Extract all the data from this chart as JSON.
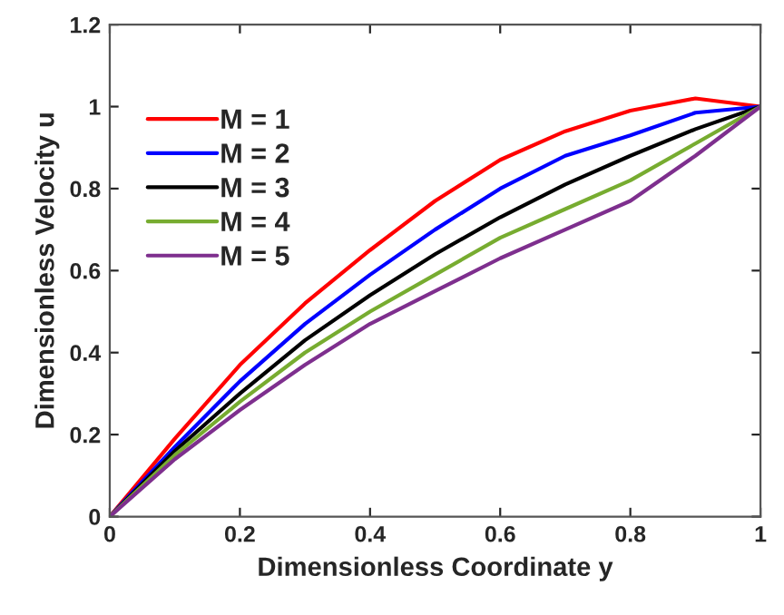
{
  "chart_data": {
    "type": "line",
    "xlabel": "Dimensionless Coordinate y",
    "ylabel": "Dimensionless Velocity u",
    "x": [
      0,
      0.1,
      0.2,
      0.3,
      0.4,
      0.5,
      0.6,
      0.7,
      0.8,
      0.9,
      1
    ],
    "series": [
      {
        "name": "M = 1",
        "color": "#ff0000",
        "values": [
          0,
          0.19,
          0.37,
          0.52,
          0.65,
          0.77,
          0.87,
          0.94,
          0.99,
          1.02,
          1
        ]
      },
      {
        "name": "M = 2",
        "color": "#0000ff",
        "values": [
          0,
          0.17,
          0.33,
          0.47,
          0.59,
          0.7,
          0.8,
          0.88,
          0.93,
          0.985,
          1
        ]
      },
      {
        "name": "M = 3",
        "color": "#000000",
        "values": [
          0,
          0.16,
          0.3,
          0.43,
          0.54,
          0.64,
          0.73,
          0.81,
          0.88,
          0.945,
          1
        ]
      },
      {
        "name": "M = 4",
        "color": "#77ac30",
        "values": [
          0,
          0.15,
          0.28,
          0.4,
          0.5,
          0.59,
          0.68,
          0.75,
          0.82,
          0.91,
          1
        ]
      },
      {
        "name": "M = 5",
        "color": "#7e2f8e",
        "values": [
          0,
          0.14,
          0.26,
          0.37,
          0.47,
          0.55,
          0.63,
          0.7,
          0.77,
          0.88,
          1
        ]
      }
    ],
    "xlim": [
      0,
      1
    ],
    "ylim": [
      0,
      1.2
    ],
    "xticks": [
      0,
      0.2,
      0.4,
      0.6,
      0.8,
      1
    ],
    "yticks": [
      0,
      0.2,
      0.4,
      0.6,
      0.8,
      1,
      1.2
    ],
    "grid": false,
    "legend": "top left",
    "marker": "none",
    "line_style": "solid"
  }
}
